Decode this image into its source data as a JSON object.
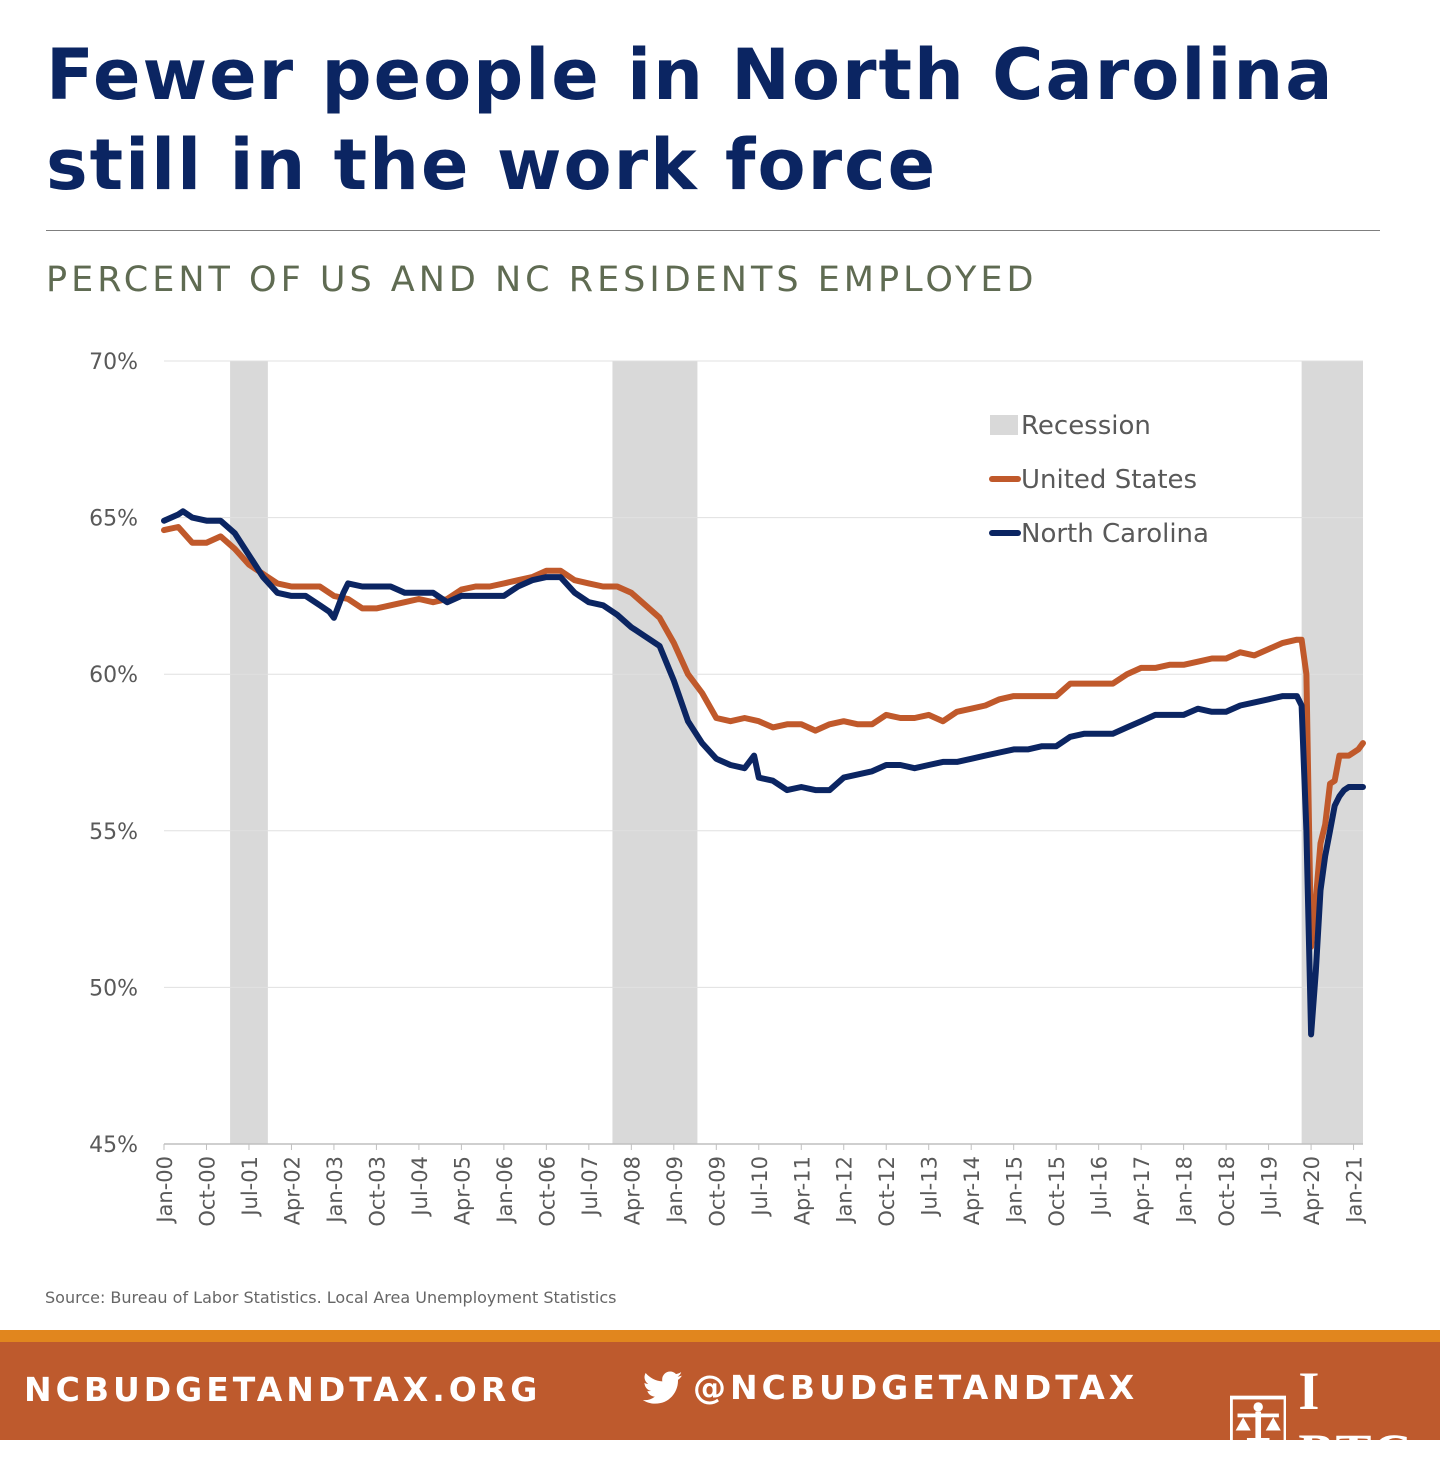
{
  "header": {
    "title": "Fewer people in North Carolina still in the work force",
    "subtitle": "PERCENT OF US AND NC RESIDENTS EMPLOYED"
  },
  "source": "Source: Bureau of Labor Statistics. Local Area Unemployment Statistics",
  "footer": {
    "site": "NCBUDGETANDTAX.ORG",
    "twitter": "@NCBUDGETANDTAX",
    "logo": "I BTC",
    "icons": [
      "twitter-icon",
      "btc-scales-logo-icon"
    ]
  },
  "colors": {
    "title": "#0b2562",
    "subtitle": "#5f6b52",
    "united_states": "#c0592b",
    "north_carolina": "#0b2562",
    "recession": "#d9d9d9",
    "footer": "#be5a2d",
    "footer_accent": "#e1861e"
  },
  "chart_data": {
    "type": "line",
    "title": "",
    "xlabel": "",
    "ylabel": "",
    "ylim": [
      45,
      70
    ],
    "y_ticks": [
      "70%",
      "65%",
      "60%",
      "55%",
      "50%",
      "45%"
    ],
    "y_tick_values": [
      70,
      65,
      60,
      55,
      50,
      45
    ],
    "x_range": [
      "Jan-00",
      "Mar-21"
    ],
    "x_ticks": [
      "Jan-00",
      "Oct-00",
      "Jul-01",
      "Apr-02",
      "Jan-03",
      "Oct-03",
      "Jul-04",
      "Apr-05",
      "Jan-06",
      "Oct-06",
      "Jul-07",
      "Apr-08",
      "Jan-09",
      "Oct-09",
      "Jul-10",
      "Apr-11",
      "Jan-12",
      "Oct-12",
      "Jul-13",
      "Apr-14",
      "Jan-15",
      "Oct-15",
      "Jul-16",
      "Apr-17",
      "Jan-18",
      "Oct-18",
      "Jul-19",
      "Apr-20",
      "Jan-21"
    ],
    "grid": "horizontal",
    "legend_position": "top-right",
    "recessions": [
      {
        "start": "Mar-01",
        "end": "Nov-01"
      },
      {
        "start": "Dec-07",
        "end": "Jun-09"
      },
      {
        "start": "Feb-20",
        "end": "Mar-21"
      }
    ],
    "legend": [
      {
        "label": "Recession",
        "kind": "area",
        "color": "#d9d9d9"
      },
      {
        "label": "United States",
        "kind": "line",
        "color": "#c0592b"
      },
      {
        "label": "North Carolina",
        "kind": "line",
        "color": "#0b2562"
      }
    ],
    "series": [
      {
        "name": "United States",
        "color": "#c0592b",
        "points": [
          [
            "Jan-00",
            64.6
          ],
          [
            "Apr-00",
            64.7
          ],
          [
            "Jul-00",
            64.2
          ],
          [
            "Oct-00",
            64.2
          ],
          [
            "Jan-01",
            64.4
          ],
          [
            "Apr-01",
            64.0
          ],
          [
            "Jul-01",
            63.5
          ],
          [
            "Oct-01",
            63.2
          ],
          [
            "Jan-02",
            62.9
          ],
          [
            "Apr-02",
            62.8
          ],
          [
            "Jul-02",
            62.8
          ],
          [
            "Oct-02",
            62.8
          ],
          [
            "Jan-03",
            62.5
          ],
          [
            "Apr-03",
            62.4
          ],
          [
            "Jul-03",
            62.1
          ],
          [
            "Oct-03",
            62.1
          ],
          [
            "Jan-04",
            62.2
          ],
          [
            "Apr-04",
            62.3
          ],
          [
            "Jul-04",
            62.4
          ],
          [
            "Oct-04",
            62.3
          ],
          [
            "Jan-05",
            62.4
          ],
          [
            "Apr-05",
            62.7
          ],
          [
            "Jul-05",
            62.8
          ],
          [
            "Oct-05",
            62.8
          ],
          [
            "Jan-06",
            62.9
          ],
          [
            "Apr-06",
            63.0
          ],
          [
            "Jul-06",
            63.1
          ],
          [
            "Oct-06",
            63.3
          ],
          [
            "Jan-07",
            63.3
          ],
          [
            "Apr-07",
            63.0
          ],
          [
            "Jul-07",
            62.9
          ],
          [
            "Oct-07",
            62.8
          ],
          [
            "Jan-08",
            62.8
          ],
          [
            "Apr-08",
            62.6
          ],
          [
            "Jul-08",
            62.2
          ],
          [
            "Oct-08",
            61.8
          ],
          [
            "Jan-09",
            61.0
          ],
          [
            "Apr-09",
            60.0
          ],
          [
            "Jul-09",
            59.4
          ],
          [
            "Oct-09",
            58.6
          ],
          [
            "Jan-10",
            58.5
          ],
          [
            "Apr-10",
            58.6
          ],
          [
            "Jul-10",
            58.5
          ],
          [
            "Oct-10",
            58.3
          ],
          [
            "Jan-11",
            58.4
          ],
          [
            "Apr-11",
            58.4
          ],
          [
            "Jul-11",
            58.2
          ],
          [
            "Oct-11",
            58.4
          ],
          [
            "Jan-12",
            58.5
          ],
          [
            "Apr-12",
            58.4
          ],
          [
            "Jul-12",
            58.4
          ],
          [
            "Oct-12",
            58.7
          ],
          [
            "Jan-13",
            58.6
          ],
          [
            "Apr-13",
            58.6
          ],
          [
            "Jul-13",
            58.7
          ],
          [
            "Oct-13",
            58.5
          ],
          [
            "Jan-14",
            58.8
          ],
          [
            "Apr-14",
            58.9
          ],
          [
            "Jul-14",
            59.0
          ],
          [
            "Oct-14",
            59.2
          ],
          [
            "Jan-15",
            59.3
          ],
          [
            "Apr-15",
            59.3
          ],
          [
            "Jul-15",
            59.3
          ],
          [
            "Oct-15",
            59.3
          ],
          [
            "Jan-16",
            59.7
          ],
          [
            "Apr-16",
            59.7
          ],
          [
            "Jul-16",
            59.7
          ],
          [
            "Oct-16",
            59.7
          ],
          [
            "Jan-17",
            60.0
          ],
          [
            "Apr-17",
            60.2
          ],
          [
            "Jul-17",
            60.2
          ],
          [
            "Oct-17",
            60.3
          ],
          [
            "Jan-18",
            60.3
          ],
          [
            "Apr-18",
            60.4
          ],
          [
            "Jul-18",
            60.5
          ],
          [
            "Oct-18",
            60.5
          ],
          [
            "Jan-19",
            60.7
          ],
          [
            "Apr-19",
            60.6
          ],
          [
            "Jul-19",
            60.8
          ],
          [
            "Oct-19",
            61.0
          ],
          [
            "Jan-20",
            61.1
          ],
          [
            "Feb-20",
            61.1
          ],
          [
            "Mar-20",
            60.0
          ],
          [
            "Apr-20",
            51.3
          ],
          [
            "May-20",
            52.8
          ],
          [
            "Jun-20",
            54.6
          ],
          [
            "Jul-20",
            55.2
          ],
          [
            "Aug-20",
            56.5
          ],
          [
            "Sep-20",
            56.6
          ],
          [
            "Oct-20",
            57.4
          ],
          [
            "Nov-20",
            57.4
          ],
          [
            "Dec-20",
            57.4
          ],
          [
            "Jan-21",
            57.5
          ],
          [
            "Feb-21",
            57.6
          ],
          [
            "Mar-21",
            57.8
          ]
        ]
      },
      {
        "name": "North Carolina",
        "color": "#0b2562",
        "points": [
          [
            "Jan-00",
            64.9
          ],
          [
            "Apr-00",
            65.1
          ],
          [
            "May-00",
            65.2
          ],
          [
            "Jul-00",
            65.0
          ],
          [
            "Oct-00",
            64.9
          ],
          [
            "Jan-01",
            64.9
          ],
          [
            "Apr-01",
            64.5
          ],
          [
            "Jul-01",
            63.8
          ],
          [
            "Oct-01",
            63.1
          ],
          [
            "Jan-02",
            62.6
          ],
          [
            "Apr-02",
            62.5
          ],
          [
            "Jul-02",
            62.5
          ],
          [
            "Oct-02",
            62.2
          ],
          [
            "Dec-02",
            62.0
          ],
          [
            "Jan-03",
            61.8
          ],
          [
            "Mar-03",
            62.6
          ],
          [
            "Apr-03",
            62.9
          ],
          [
            "Jul-03",
            62.8
          ],
          [
            "Oct-03",
            62.8
          ],
          [
            "Jan-04",
            62.8
          ],
          [
            "Apr-04",
            62.6
          ],
          [
            "Jul-04",
            62.6
          ],
          [
            "Oct-04",
            62.6
          ],
          [
            "Jan-05",
            62.3
          ],
          [
            "Apr-05",
            62.5
          ],
          [
            "Jul-05",
            62.5
          ],
          [
            "Oct-05",
            62.5
          ],
          [
            "Jan-06",
            62.5
          ],
          [
            "Apr-06",
            62.8
          ],
          [
            "Jul-06",
            63.0
          ],
          [
            "Oct-06",
            63.1
          ],
          [
            "Jan-07",
            63.1
          ],
          [
            "Apr-07",
            62.6
          ],
          [
            "Jul-07",
            62.3
          ],
          [
            "Oct-07",
            62.2
          ],
          [
            "Jan-08",
            61.9
          ],
          [
            "Apr-08",
            61.5
          ],
          [
            "Jul-08",
            61.2
          ],
          [
            "Oct-08",
            60.9
          ],
          [
            "Jan-09",
            59.8
          ],
          [
            "Apr-09",
            58.5
          ],
          [
            "Jul-09",
            57.8
          ],
          [
            "Oct-09",
            57.3
          ],
          [
            "Jan-10",
            57.1
          ],
          [
            "Apr-10",
            57.0
          ],
          [
            "Jun-10",
            57.4
          ],
          [
            "Jul-10",
            56.7
          ],
          [
            "Oct-10",
            56.6
          ],
          [
            "Jan-11",
            56.3
          ],
          [
            "Apr-11",
            56.4
          ],
          [
            "Jul-11",
            56.3
          ],
          [
            "Oct-11",
            56.3
          ],
          [
            "Jan-12",
            56.7
          ],
          [
            "Apr-12",
            56.8
          ],
          [
            "Jul-12",
            56.9
          ],
          [
            "Oct-12",
            57.1
          ],
          [
            "Jan-13",
            57.1
          ],
          [
            "Apr-13",
            57.0
          ],
          [
            "Jul-13",
            57.1
          ],
          [
            "Oct-13",
            57.2
          ],
          [
            "Jan-14",
            57.2
          ],
          [
            "Apr-14",
            57.3
          ],
          [
            "Jul-14",
            57.4
          ],
          [
            "Oct-14",
            57.5
          ],
          [
            "Jan-15",
            57.6
          ],
          [
            "Apr-15",
            57.6
          ],
          [
            "Jul-15",
            57.7
          ],
          [
            "Oct-15",
            57.7
          ],
          [
            "Jan-16",
            58.0
          ],
          [
            "Apr-16",
            58.1
          ],
          [
            "Jul-16",
            58.1
          ],
          [
            "Oct-16",
            58.1
          ],
          [
            "Jan-17",
            58.3
          ],
          [
            "Apr-17",
            58.5
          ],
          [
            "Jul-17",
            58.7
          ],
          [
            "Oct-17",
            58.7
          ],
          [
            "Jan-18",
            58.7
          ],
          [
            "Apr-18",
            58.9
          ],
          [
            "Jul-18",
            58.8
          ],
          [
            "Oct-18",
            58.8
          ],
          [
            "Jan-19",
            59.0
          ],
          [
            "Apr-19",
            59.1
          ],
          [
            "Jul-19",
            59.2
          ],
          [
            "Oct-19",
            59.3
          ],
          [
            "Jan-20",
            59.3
          ],
          [
            "Feb-20",
            59.0
          ],
          [
            "Mar-20",
            55.0
          ],
          [
            "Apr-20",
            48.5
          ],
          [
            "May-20",
            50.5
          ],
          [
            "Jun-20",
            53.1
          ],
          [
            "Jul-20",
            54.2
          ],
          [
            "Aug-20",
            55.0
          ],
          [
            "Sep-20",
            55.8
          ],
          [
            "Oct-20",
            56.1
          ],
          [
            "Nov-20",
            56.3
          ],
          [
            "Dec-20",
            56.4
          ],
          [
            "Jan-21",
            56.4
          ],
          [
            "Feb-21",
            56.4
          ],
          [
            "Mar-21",
            56.4
          ]
        ]
      }
    ]
  }
}
